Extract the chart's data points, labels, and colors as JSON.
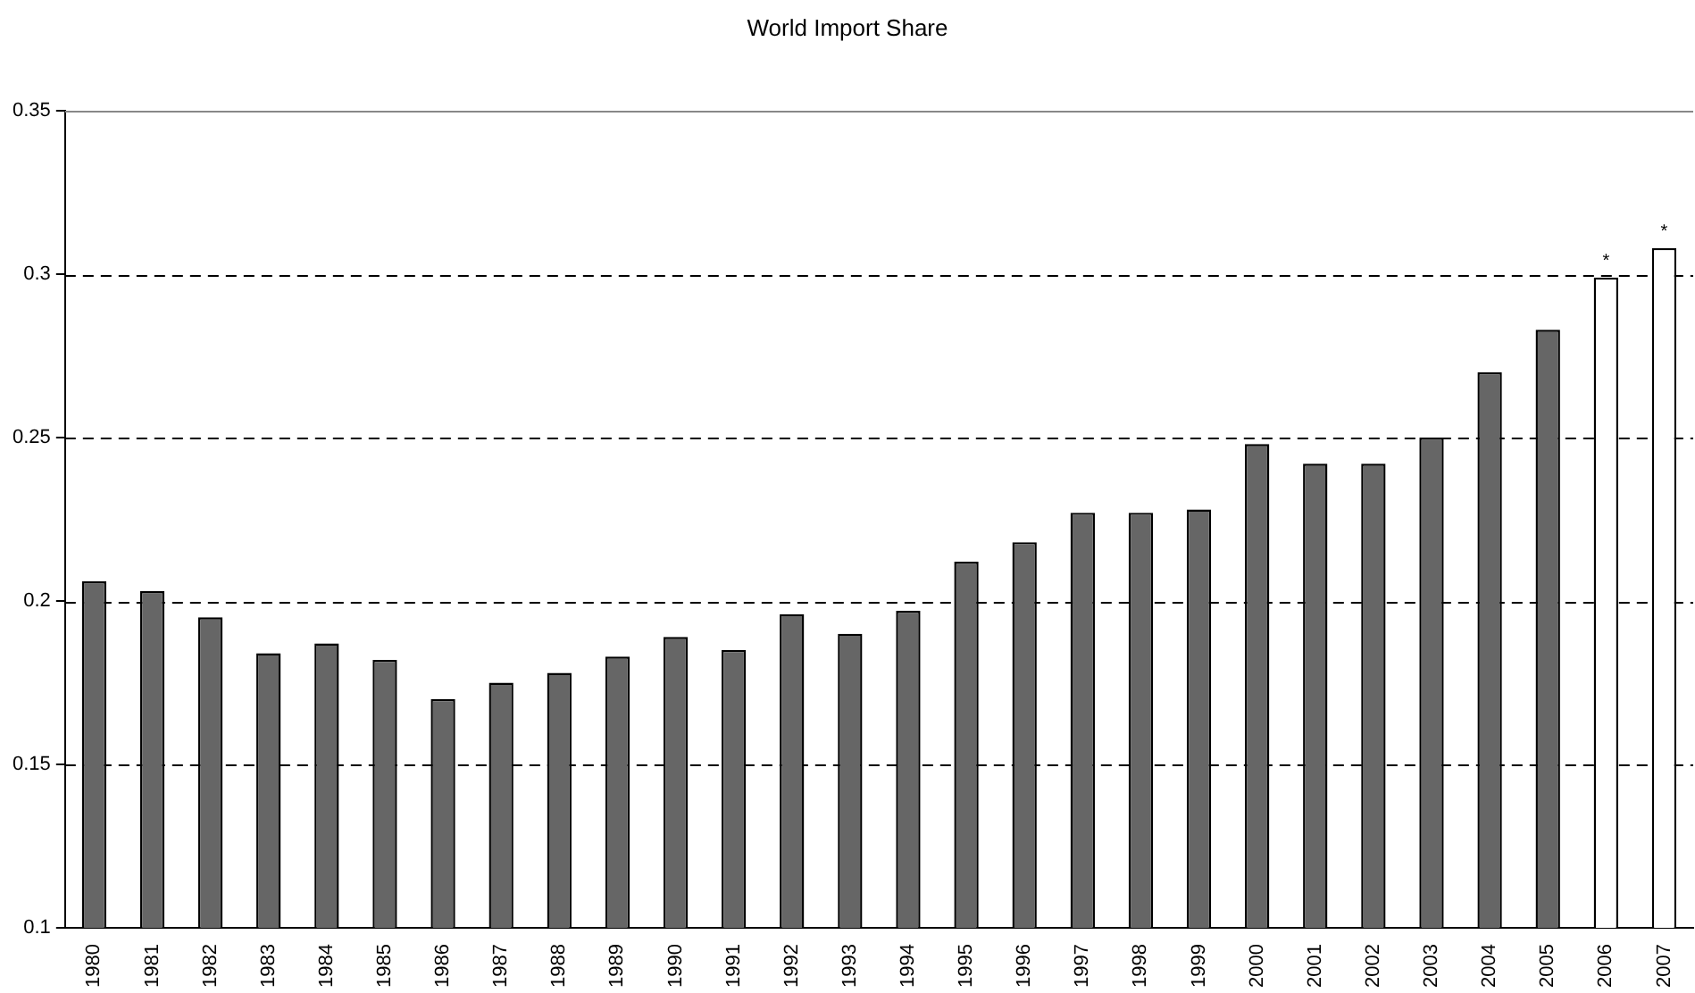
{
  "chart_data": {
    "type": "bar",
    "title": "World Import Share",
    "categories": [
      "1980",
      "1981",
      "1982",
      "1983",
      "1984",
      "1985",
      "1986",
      "1987",
      "1988",
      "1989",
      "1990",
      "1991",
      "1992",
      "1993",
      "1994",
      "1995",
      "1996",
      "1997",
      "1998",
      "1999",
      "2000",
      "2001",
      "2002",
      "2003",
      "2004",
      "2005",
      "2006",
      "2007"
    ],
    "values": [
      0.206,
      0.203,
      0.195,
      0.184,
      0.187,
      0.182,
      0.17,
      0.175,
      0.178,
      0.183,
      0.189,
      0.185,
      0.196,
      0.19,
      0.197,
      0.212,
      0.218,
      0.227,
      0.227,
      0.228,
      0.248,
      0.242,
      0.242,
      0.25,
      0.27,
      0.283,
      0.299,
      0.308
    ],
    "colors": [
      "#666666",
      "#666666",
      "#666666",
      "#666666",
      "#666666",
      "#666666",
      "#666666",
      "#666666",
      "#666666",
      "#666666",
      "#666666",
      "#666666",
      "#666666",
      "#666666",
      "#666666",
      "#666666",
      "#666666",
      "#666666",
      "#666666",
      "#666666",
      "#666666",
      "#666666",
      "#666666",
      "#666666",
      "#666666",
      "#666666",
      "#ffffff",
      "#ffffff"
    ],
    "ylim": [
      0.1,
      0.35
    ],
    "yticks": [
      0.1,
      0.15,
      0.2,
      0.25,
      0.3,
      0.35
    ],
    "grid": "y",
    "annotations": [
      {
        "text": "*",
        "x": "2006",
        "y": 0.299
      },
      {
        "text": "*",
        "x": "2007",
        "y": 0.308
      }
    ]
  }
}
